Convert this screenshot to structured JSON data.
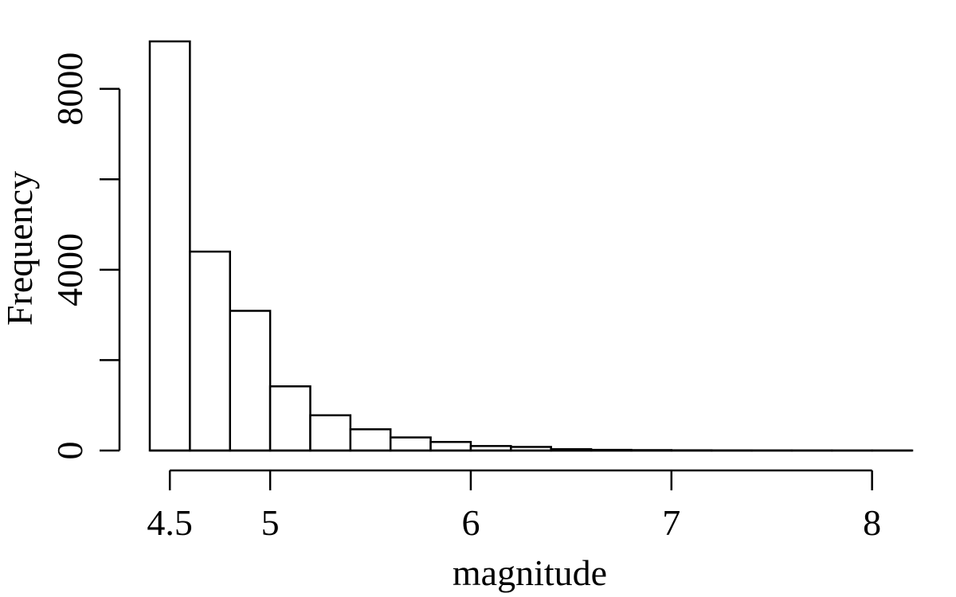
{
  "chart_data": {
    "type": "bar",
    "title": "",
    "xlabel": "magnitude",
    "ylabel": "Frequency",
    "bin_edges": [
      4.4,
      4.6,
      4.8,
      5.0,
      5.2,
      5.4,
      5.6,
      5.8,
      6.0,
      6.2,
      6.4,
      6.6,
      6.8,
      7.0,
      7.2,
      7.4,
      7.6,
      7.8,
      8.0,
      8.2
    ],
    "values": [
      9050,
      4400,
      3090,
      1420,
      780,
      470,
      290,
      190,
      100,
      80,
      30,
      15,
      10,
      6,
      4,
      3,
      2,
      1,
      1
    ],
    "xticks": [
      {
        "value": 4.5,
        "label": "4.5"
      },
      {
        "value": 5,
        "label": "5"
      },
      {
        "value": 6,
        "label": "6"
      },
      {
        "value": 7,
        "label": "7"
      },
      {
        "value": 8,
        "label": "8"
      }
    ],
    "yticks": [
      {
        "value": 0,
        "label": "0"
      },
      {
        "value": 2000,
        "label": ""
      },
      {
        "value": 4000,
        "label": "4000"
      },
      {
        "value": 6000,
        "label": ""
      },
      {
        "value": 8000,
        "label": "8000"
      }
    ],
    "xlim": [
      4.4,
      8.2
    ],
    "ylim": [
      0,
      9050
    ],
    "grid": false,
    "legend": "none"
  }
}
